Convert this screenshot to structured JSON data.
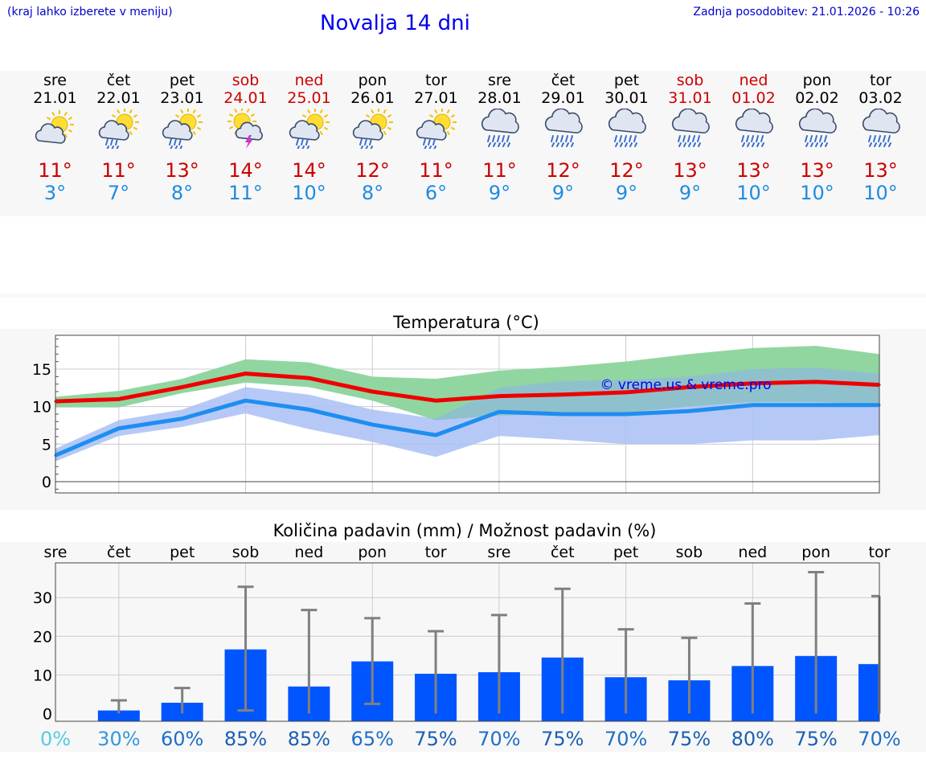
{
  "header": {
    "location_hint": "(kraj lahko izberete v meniju)",
    "title": "Novalja 14 dni",
    "updated": "Zadnja posodobitev: 21.01.2026 - 10:26"
  },
  "days": [
    {
      "name": "sre",
      "date": "21.01",
      "weekend": false,
      "icon": "sun-cloud-icon",
      "max": "11°",
      "min": "3°"
    },
    {
      "name": "čet",
      "date": "22.01",
      "weekend": false,
      "icon": "sun-cloud-rain-icon",
      "max": "11°",
      "min": "7°"
    },
    {
      "name": "pet",
      "date": "23.01",
      "weekend": false,
      "icon": "sun-cloud-rain-icon",
      "max": "13°",
      "min": "8°"
    },
    {
      "name": "sob",
      "date": "24.01",
      "weekend": true,
      "icon": "sun-cloud-thunder-icon",
      "max": "14°",
      "min": "11°"
    },
    {
      "name": "ned",
      "date": "25.01",
      "weekend": true,
      "icon": "sun-cloud-rain-icon",
      "max": "14°",
      "min": "10°"
    },
    {
      "name": "pon",
      "date": "26.01",
      "weekend": false,
      "icon": "sun-cloud-rain-icon",
      "max": "12°",
      "min": "8°"
    },
    {
      "name": "tor",
      "date": "27.01",
      "weekend": false,
      "icon": "sun-cloud-rain-icon",
      "max": "11°",
      "min": "6°"
    },
    {
      "name": "sre",
      "date": "28.01",
      "weekend": false,
      "icon": "cloud-rain-icon",
      "max": "11°",
      "min": "9°"
    },
    {
      "name": "čet",
      "date": "29.01",
      "weekend": false,
      "icon": "cloud-rain-icon",
      "max": "12°",
      "min": "9°"
    },
    {
      "name": "pet",
      "date": "30.01",
      "weekend": false,
      "icon": "cloud-rain-icon",
      "max": "12°",
      "min": "9°"
    },
    {
      "name": "sob",
      "date": "31.01",
      "weekend": true,
      "icon": "cloud-rain-icon",
      "max": "13°",
      "min": "9°"
    },
    {
      "name": "ned",
      "date": "01.02",
      "weekend": true,
      "icon": "cloud-rain-icon",
      "max": "13°",
      "min": "10°"
    },
    {
      "name": "pon",
      "date": "02.02",
      "weekend": false,
      "icon": "cloud-rain-icon",
      "max": "13°",
      "min": "10°"
    },
    {
      "name": "tor",
      "date": "03.02",
      "weekend": false,
      "icon": "cloud-rain-icon",
      "max": "13°",
      "min": "10°"
    }
  ],
  "colors": {
    "max_line": "#ee0000",
    "min_line": "#1e8ef0",
    "max_band": "#a8e6a0",
    "min_band": "#a9bff5",
    "overlap": "#7cc8a8",
    "bar": "#0055ff",
    "whisker": "#808080",
    "watermark": "#0000ee"
  },
  "chart_data": [
    {
      "type": "line",
      "title": "Temperatura (°C)",
      "watermark": "© vreme.us & vreme.pro",
      "xlabel": "",
      "ylabel": "",
      "ylim": [
        -1.5,
        19.5
      ],
      "yticks": [
        0,
        5,
        10,
        15
      ],
      "x": [
        0,
        1,
        2,
        3,
        4,
        5,
        6,
        7,
        8,
        9,
        10,
        11,
        12,
        13
      ],
      "series": [
        {
          "name": "max",
          "values": [
            10.7,
            11.0,
            12.6,
            14.4,
            13.8,
            12.0,
            10.8,
            11.4,
            11.6,
            11.9,
            12.6,
            13.1,
            13.3,
            12.9
          ],
          "band_low": [
            9.9,
            9.9,
            11.8,
            13.2,
            12.6,
            10.8,
            8.2,
            8.8,
            9.0,
            9.2,
            10.0,
            10.6,
            10.6,
            10.3
          ],
          "band_high": [
            11.3,
            12.1,
            13.7,
            16.3,
            15.9,
            14.0,
            13.7,
            14.8,
            15.3,
            16.0,
            17.0,
            17.8,
            18.1,
            17.0
          ]
        },
        {
          "name": "min",
          "values": [
            3.5,
            7.1,
            8.4,
            10.8,
            9.6,
            7.6,
            6.2,
            9.3,
            9.0,
            9.0,
            9.4,
            10.2,
            10.2,
            10.2
          ],
          "band_low": [
            2.7,
            6.1,
            7.3,
            9.1,
            7.0,
            5.3,
            3.3,
            6.1,
            5.6,
            5.0,
            5.0,
            5.5,
            5.5,
            6.2
          ],
          "band_high": [
            4.4,
            8.2,
            9.6,
            12.6,
            11.6,
            9.6,
            8.4,
            12.5,
            13.4,
            13.6,
            14.0,
            15.0,
            15.2,
            14.4
          ]
        }
      ]
    },
    {
      "type": "bar",
      "title": "Količina padavin (mm) / Možnost padavin (%)",
      "xlabel": "",
      "ylabel": "",
      "ylim": [
        -2,
        39
      ],
      "yticks": [
        0,
        10,
        20,
        30
      ],
      "categories": [
        "sre",
        "čet",
        "pet",
        "sob",
        "ned",
        "pon",
        "tor",
        "sre",
        "čet",
        "pet",
        "sob",
        "ned",
        "pon",
        "tor"
      ],
      "values": [
        0,
        0.8,
        2.8,
        16.6,
        7.0,
        13.5,
        10.3,
        10.7,
        14.5,
        9.4,
        8.6,
        12.3,
        14.9,
        12.8
      ],
      "error_low": [
        0,
        0,
        0,
        0.8,
        0,
        2.5,
        0,
        0,
        0,
        0,
        0,
        0,
        0,
        0
      ],
      "error_high": [
        0,
        3.4,
        6.6,
        32.8,
        26.8,
        24.7,
        21.3,
        25.5,
        32.3,
        21.8,
        19.6,
        28.5,
        36.6,
        30.4
      ],
      "probability": [
        "0%",
        "30%",
        "60%",
        "85%",
        "85%",
        "65%",
        "75%",
        "70%",
        "75%",
        "70%",
        "75%",
        "80%",
        "75%",
        "70%"
      ],
      "probability_colors": [
        "#55ccdd",
        "#3399dd",
        "#1e6fc8",
        "#1a5fb4",
        "#1a5fb4",
        "#1e6fc8",
        "#1a5fb4",
        "#1e6fc8",
        "#1a5fb4",
        "#1e6fc8",
        "#1a5fb4",
        "#1a5fb4",
        "#1a5fb4",
        "#1e6fc8"
      ]
    }
  ]
}
